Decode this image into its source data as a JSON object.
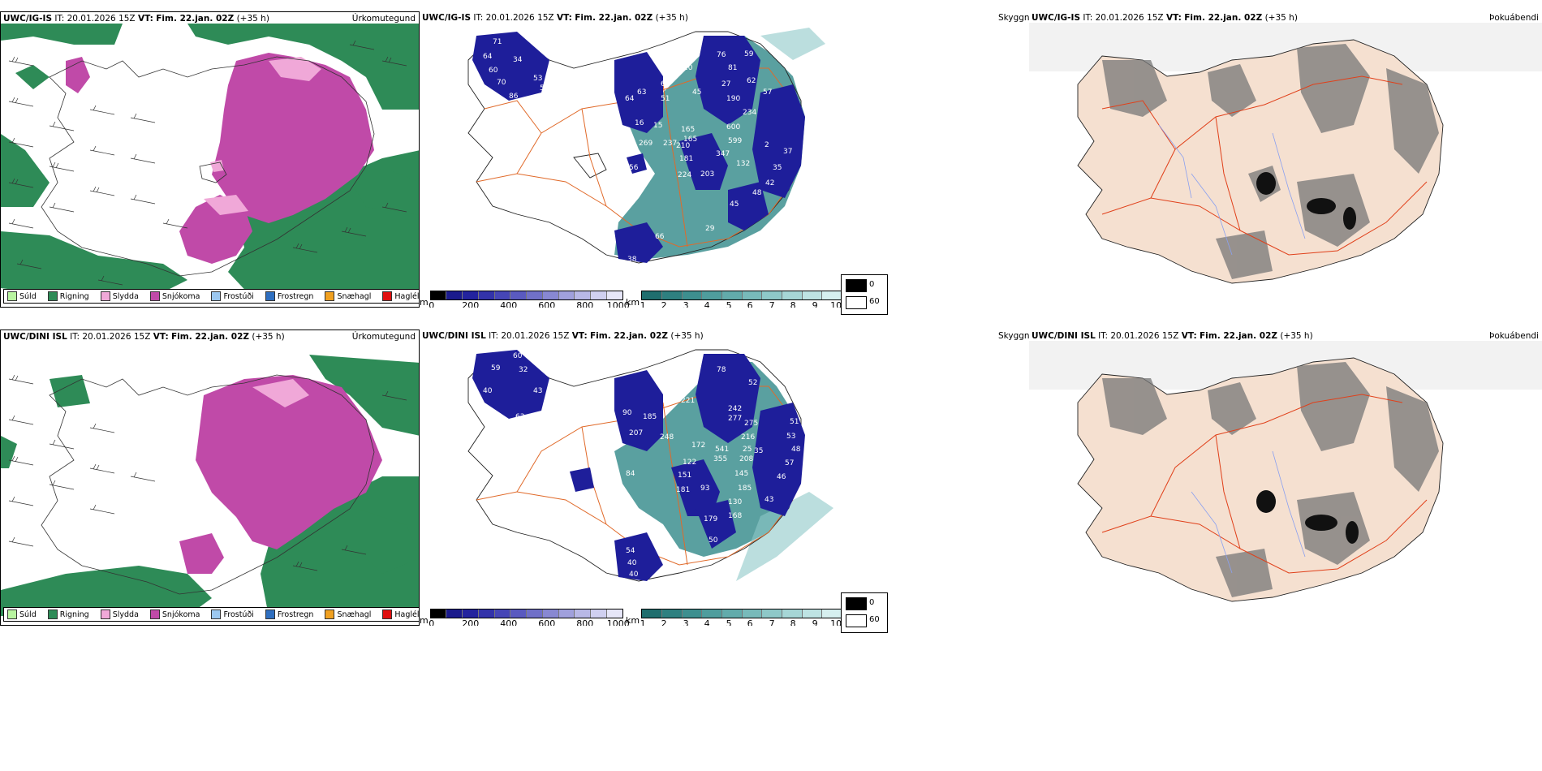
{
  "rows": [
    {
      "model": "UWC/IG-IS",
      "init_label": "IT:",
      "init_time": "20.01.2026 15Z",
      "valid_label": "VT:",
      "valid_time": "Fim. 22.jan. 02Z",
      "lead": "(+35 h)",
      "snow_labels": [
        "71",
        "64",
        "34",
        "60",
        "53",
        "70",
        "58",
        "86",
        "58",
        "24",
        "2",
        "64",
        "63",
        "65",
        "16",
        "51",
        "165",
        "269",
        "237",
        "15",
        "45",
        "76",
        "59",
        "81",
        "62",
        "27",
        "190",
        "57",
        "234",
        "165",
        "600",
        "599",
        "210",
        "181",
        "224",
        "203",
        "347",
        "2",
        "132",
        "37",
        "35",
        "42",
        "48",
        "45",
        "29",
        "56",
        "79",
        "38",
        "66",
        "10"
      ]
    },
    {
      "model": "UWC/DINI ISL",
      "init_label": "IT:",
      "init_time": "20.01.2026 15Z",
      "valid_label": "VT:",
      "valid_time": "Fim. 22.jan. 02Z",
      "lead": "(+35 h)",
      "snow_labels": [
        "60",
        "59",
        "32",
        "40",
        "43",
        "63",
        "80",
        "59",
        "90",
        "185",
        "207",
        "221",
        "248",
        "78",
        "52",
        "242",
        "277",
        "275",
        "216",
        "51",
        "53",
        "48",
        "57",
        "46",
        "172",
        "541",
        "355",
        "208",
        "122",
        "151",
        "181",
        "93",
        "145",
        "185",
        "130",
        "179",
        "168",
        "50",
        "43",
        "65",
        "84",
        "54",
        "66",
        "40",
        "40",
        "25",
        "35"
      ]
    }
  ],
  "panels": {
    "precip_title": "Úrkomutegund",
    "snow_title": "Skyggni",
    "cloud_title": "Þokuábendi"
  },
  "precip_legend": [
    {
      "label": "Súld",
      "color": "#b8f5a0"
    },
    {
      "label": "Rigning",
      "color": "#2e8b57"
    },
    {
      "label": "Slydda",
      "color": "#f0a8d8"
    },
    {
      "label": "Snjókoma",
      "color": "#c04aa8"
    },
    {
      "label": "Frostúði",
      "color": "#9cc8f0"
    },
    {
      "label": "Frostregn",
      "color": "#2f6fc0"
    },
    {
      "label": "Snæhagl",
      "color": "#f0a020"
    },
    {
      "label": "Haglél",
      "color": "#e01010"
    }
  ],
  "colorbar_m": {
    "unit": "m",
    "ticks": [
      "0",
      "200",
      "400",
      "600",
      "800",
      "1000"
    ],
    "colors": [
      "#000000",
      "#1a1a8c",
      "#23239e",
      "#3333aa",
      "#4646b6",
      "#5a5ac0",
      "#7070c8",
      "#8888d2",
      "#a0a0dc",
      "#b8b8e6",
      "#d0d0f0",
      "#e6e6f8"
    ]
  },
  "colorbar_km": {
    "unit": "km",
    "ticks": [
      "1",
      "2",
      "3",
      "4",
      "5",
      "6",
      "7",
      "8",
      "9",
      "10"
    ],
    "colors": [
      "#1f6e6e",
      "#2e8080",
      "#3d8f8f",
      "#4f9d9d",
      "#62abab",
      "#78baba",
      "#8ec8c8",
      "#a6d6d6",
      "#bee3e3",
      "#d6efef"
    ]
  },
  "cloud_key": [
    "0",
    "60"
  ],
  "colors": {
    "rain": "#2e8b57",
    "snow": "#c04aa8",
    "sleet": "#f0a8d8",
    "teal": "#3d8f8f",
    "navy": "#1e1e9a",
    "coast_fill": "#f5e0d0",
    "road": "#e06a2a",
    "river": "#8aa0f0"
  }
}
